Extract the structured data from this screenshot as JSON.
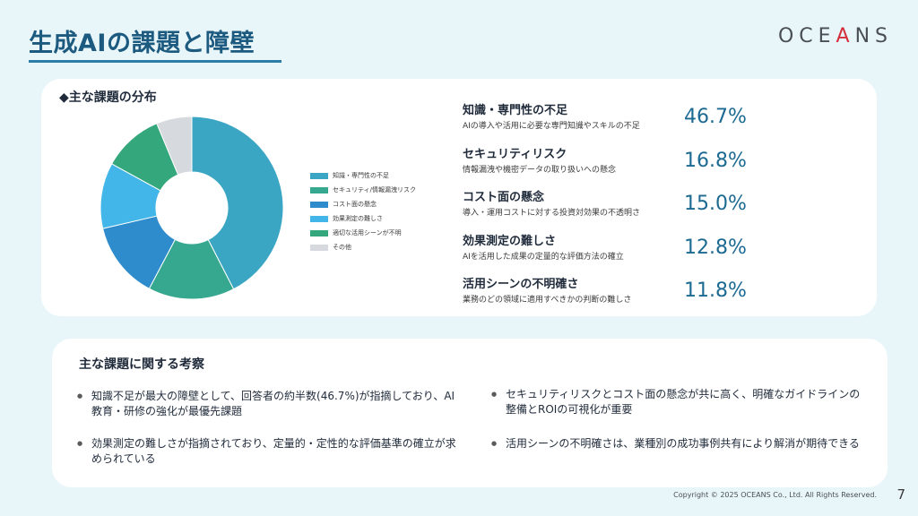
{
  "header": {
    "title": "生成AIの課題と障壁",
    "logo_pre": "OCE",
    "logo_a": "A",
    "logo_post": "NS"
  },
  "distribution": {
    "title": "◆主な課題の分布",
    "legend": [
      {
        "label": "知識・専門性の不足",
        "color": "#3aa6c4"
      },
      {
        "label": "セキュリティ/情報漏洩リスク",
        "color": "#36a88f"
      },
      {
        "label": "コスト面の懸念",
        "color": "#2e8ccc"
      },
      {
        "label": "効果測定の難しさ",
        "color": "#42b6e8"
      },
      {
        "label": "適切な活用シーンが不明",
        "color": "#35a77c"
      },
      {
        "label": "その他",
        "color": "#d6d9de"
      }
    ]
  },
  "chart_data": {
    "type": "pie",
    "categories": [
      "知識・専門性の不足",
      "セキュリティ/情報漏洩リスク",
      "コスト面の懸念",
      "効果測定の難しさ",
      "適切な活用シーンが不明",
      "その他"
    ],
    "values": [
      46.7,
      16.8,
      15.0,
      12.8,
      11.8,
      6.9
    ],
    "colors": [
      "#3aa6c4",
      "#36a88f",
      "#2e8ccc",
      "#42b6e8",
      "#35a77c",
      "#d6d9de"
    ],
    "donut": true
  },
  "stats": [
    {
      "name": "知識・専門性の不足",
      "desc": "AIの導入や活用に必要な専門知識やスキルの不足",
      "value": "46.7%"
    },
    {
      "name": "セキュリティリスク",
      "desc": "情報漏洩や機密データの取り扱いへの懸念",
      "value": "16.8%"
    },
    {
      "name": "コスト面の懸念",
      "desc": "導入・運用コストに対する投資対効果の不透明さ",
      "value": "15.0%"
    },
    {
      "name": "効果測定の難しさ",
      "desc": "AIを活用した成果の定量的な評価方法の確立",
      "value": "12.8%"
    },
    {
      "name": "活用シーンの不明確さ",
      "desc": "業務のどの領域に適用すべきかの判断の難しさ",
      "value": "11.8%"
    }
  ],
  "insights": {
    "title": "主な課題に関する考察",
    "items": [
      "知識不足が最大の障壁として、回答者の約半数(46.7%)が指摘しており、AI教育・研修の強化が最優先課題",
      "セキュリティリスクとコスト面の懸念が共に高く、明確なガイドラインの整備とROIの可視化が重要",
      "効果測定の難しさが指摘されており、定量的・定性的な評価基準の確立が求められている",
      "活用シーンの不明確さは、業種別の成功事例共有により解消が期待できる"
    ]
  },
  "footer": {
    "copyright": "Copyright © 2025 OCEANS Co., Ltd.  All Rights Reserved.",
    "page": "7"
  }
}
